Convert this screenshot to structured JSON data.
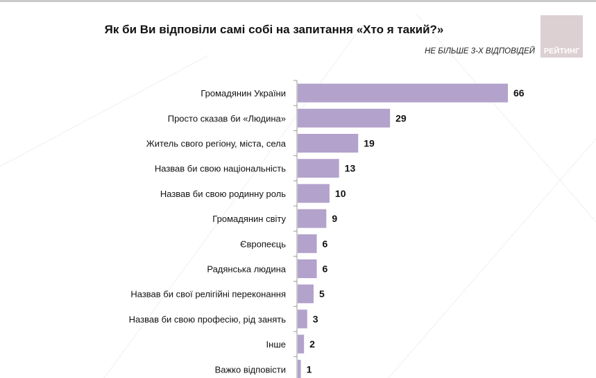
{
  "chart_data": {
    "type": "bar",
    "orientation": "horizontal",
    "title": "Як би Ви відповіли самі собі на запитання «Хто я такий?»",
    "subtitle": "НЕ БІЛЬШЕ 3-Х ВІДПОВІДЕЙ",
    "categories": [
      "Громадянин України",
      "Просто сказав би «Людина»",
      "Житель свого регіону, міста, села",
      "Назвав би свою національність",
      "Назвав би свою родинну роль",
      "Громадянин світу",
      "Європеєць",
      "Радянська людина",
      "Назвав би свої релігійні переконання",
      "Назвав би свою професію, рід занять",
      "Інше",
      "Важко відповісти"
    ],
    "values": [
      66,
      29,
      19,
      13,
      10,
      9,
      6,
      6,
      5,
      3,
      2,
      1
    ],
    "xlim": [
      0,
      70
    ],
    "grid": false,
    "bar_color": "#b3a2cc"
  },
  "logo": {
    "text": "РЕЙТИНГ",
    "color": "#ddd0d2"
  }
}
